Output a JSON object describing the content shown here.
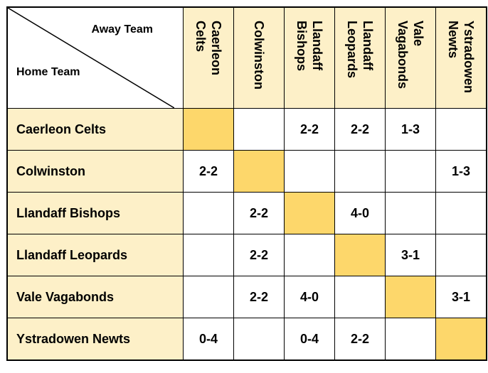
{
  "table": {
    "away_label": "Away Team",
    "home_label": "Home Team",
    "away_teams": [
      "Caerleon\nCelts",
      "Colwinston",
      "Llandaff\nBishops",
      "Llandaff\nLeopards",
      "Vale\nVagabonds",
      "Ystradowen\nNewts"
    ],
    "rows": [
      {
        "team": "Caerleon Celts",
        "results": [
          "",
          "",
          "2-2",
          "2-2",
          "1-3",
          ""
        ]
      },
      {
        "team": "Colwinston",
        "results": [
          "2-2",
          "",
          "",
          "",
          "",
          "1-3"
        ]
      },
      {
        "team": "Llandaff Bishops",
        "results": [
          "",
          "2-2",
          "",
          "4-0",
          "",
          ""
        ]
      },
      {
        "team": "Llandaff Leopards",
        "results": [
          "",
          "2-2",
          "",
          "",
          "3-1",
          ""
        ]
      },
      {
        "team": "Vale Vagabonds",
        "results": [
          "",
          "2-2",
          "4-0",
          "",
          "",
          "3-1"
        ]
      },
      {
        "team": "Ystradowen Newts",
        "results": [
          "0-4",
          "",
          "0-4",
          "2-2",
          "",
          ""
        ]
      }
    ]
  },
  "colors": {
    "header_fill": "#fdf0c8",
    "diagonal_fill": "#fdd76b"
  }
}
